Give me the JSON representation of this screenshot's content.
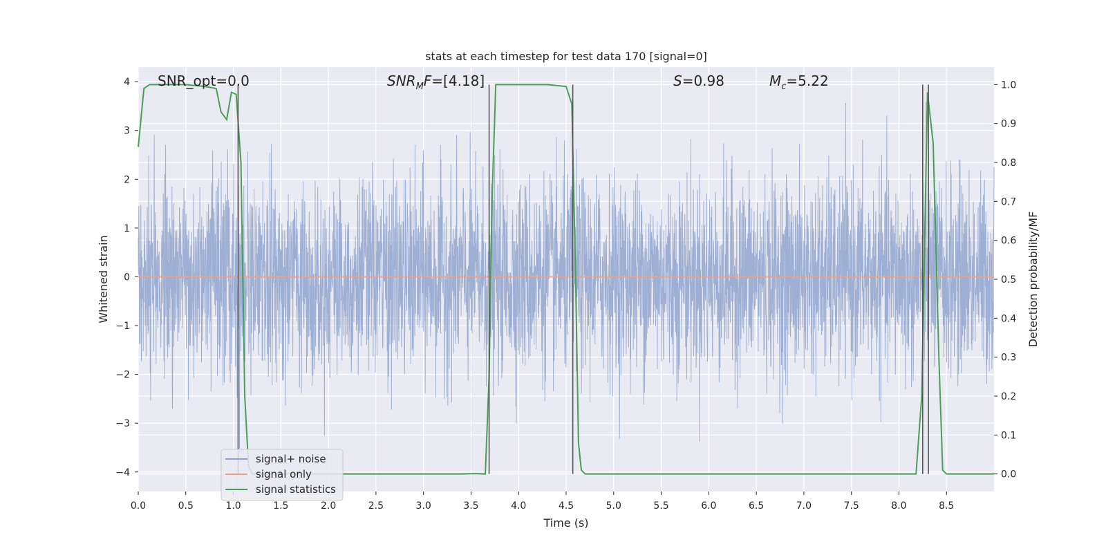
{
  "chart_data": {
    "type": "line",
    "title": "stats at each timestep for test data 170 [signal=0]",
    "xlabel": "Time (s)",
    "ylabel": "Whitened strain",
    "y2label": "Detection probability/MF",
    "xlim": [
      0.0,
      9.0
    ],
    "ylim": [
      -4.4,
      4.3
    ],
    "y2lim": [
      -0.045,
      1.045
    ],
    "xticks": [
      "0.0",
      "0.5",
      "1.0",
      "1.5",
      "2.0",
      "2.5",
      "3.0",
      "3.5",
      "4.0",
      "4.5",
      "5.0",
      "5.5",
      "6.0",
      "6.5",
      "7.0",
      "7.5",
      "8.0",
      "8.5"
    ],
    "yticks": [
      "4",
      "3",
      "2",
      "1",
      "0",
      "−1",
      "−2",
      "−3",
      "−4"
    ],
    "y2ticks": [
      "1.0",
      "0.9",
      "0.8",
      "0.7",
      "0.6",
      "0.5",
      "0.4",
      "0.3",
      "0.2",
      "0.1",
      "0.0"
    ],
    "grid": true,
    "annotations": [
      {
        "kind": "text",
        "text": "SNR_opt=0.0"
      },
      {
        "kind": "math",
        "base": "SNR",
        "sub": "M",
        "rest": "F=[4.18]"
      },
      {
        "kind": "math",
        "base": "S",
        "sub": "",
        "rest": "=0.98"
      },
      {
        "kind": "math",
        "base": "M",
        "sub": "c",
        "rest": "=5.22"
      }
    ],
    "legend": {
      "placement": "lower-left",
      "entries": [
        "signal+ noise",
        "signal only",
        "signal statistics"
      ]
    },
    "series": [
      {
        "name": "signal+ noise",
        "axis": "left",
        "color": "#8fa4cc",
        "style": "noise",
        "amplitude_std": 1.0,
        "x_range": [
          0.0,
          9.0
        ]
      },
      {
        "name": "signal only",
        "axis": "left",
        "color": "#e8a48d",
        "x": [
          0.0,
          9.0
        ],
        "y": [
          0.0,
          0.0
        ]
      },
      {
        "name": "signal statistics",
        "axis": "right",
        "color": "#4a9e5c",
        "x": [
          0.0,
          0.06,
          0.12,
          0.3,
          0.5,
          0.7,
          0.82,
          0.87,
          0.93,
          0.98,
          1.03,
          1.08,
          1.12,
          1.16,
          1.2,
          1.5,
          2.0,
          2.5,
          3.0,
          3.4,
          3.55,
          3.65,
          3.69,
          3.72,
          3.76,
          3.8,
          4.0,
          4.3,
          4.5,
          4.56,
          4.6,
          4.63,
          4.66,
          4.7,
          5.0,
          6.0,
          7.0,
          8.0,
          8.18,
          8.24,
          8.3,
          8.36,
          8.42,
          8.46,
          8.5,
          9.0
        ],
        "y": [
          0.84,
          0.99,
          1.0,
          1.0,
          1.0,
          0.995,
          0.99,
          0.93,
          0.91,
          0.98,
          0.975,
          0.8,
          0.2,
          0.02,
          0.0,
          0.0,
          0.0,
          0.0,
          0.0,
          0.0,
          0.001,
          0.0,
          0.25,
          0.7,
          1.0,
          1.0,
          1.0,
          1.0,
          0.995,
          0.95,
          0.5,
          0.08,
          0.01,
          0.0,
          0.0,
          0.0,
          0.0,
          0.0,
          0.0,
          0.2,
          0.98,
          0.85,
          0.3,
          0.01,
          0.0,
          0.0
        ]
      }
    ],
    "vlines": [
      1.05,
      3.69,
      4.57,
      8.25,
      8.31
    ]
  }
}
